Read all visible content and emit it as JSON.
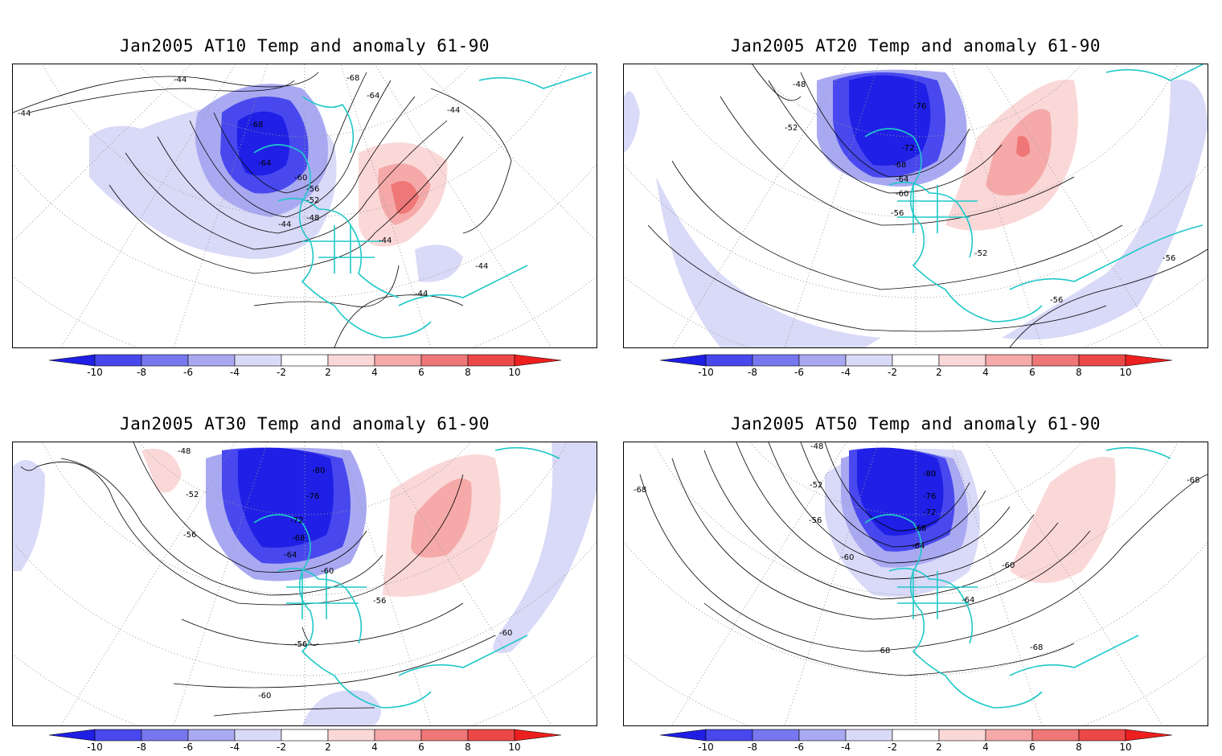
{
  "panels": [
    {
      "title": "Jan2005 AT10 Temp and anomaly 61-90",
      "contour_labels": [
        "-44",
        "-44",
        "-68",
        "-64",
        "-44",
        "-68",
        "-64",
        "-60",
        "-56",
        "-52",
        "-48",
        "-44",
        "-44",
        "-44",
        "-44"
      ]
    },
    {
      "title": "Jan2005 AT20 Temp and anomaly 61-90",
      "contour_labels": [
        "-48",
        "-52",
        "-76",
        "-72",
        "-68",
        "-64",
        "-60",
        "-56",
        "-52",
        "-56",
        "-56"
      ]
    },
    {
      "title": "Jan2005 AT30 Temp and anomaly 61-90",
      "contour_labels": [
        "-48",
        "-52",
        "-56",
        "-80",
        "-76",
        "-72",
        "-68",
        "-64",
        "-60",
        "-56",
        "-56",
        "-60",
        "-60"
      ]
    },
    {
      "title": "Jan2005 AT50 Temp and anomaly 61-90",
      "contour_labels": [
        "-48",
        "-68",
        "-52",
        "-56",
        "-80",
        "-76",
        "-72",
        "-68",
        "-64",
        "-60",
        "-60",
        "-64",
        "-68",
        "-68",
        "-68"
      ]
    }
  ],
  "colorbar": {
    "ticks": [
      "-10",
      "-8",
      "-6",
      "-4",
      "-2",
      "2",
      "4",
      "6",
      "8",
      "10"
    ],
    "colors": {
      "neg10": "#1f1fe6",
      "neg8": "#4848ee",
      "neg6": "#7777f0",
      "neg4": "#a9a9f2",
      "neg2": "#d9d9f8",
      "zero": "#ffffff",
      "pos2": "#fbd8d8",
      "pos4": "#f5a9a9",
      "pos6": "#f07777",
      "pos8": "#ec4848",
      "pos10": "#ee1f1f"
    }
  },
  "coastline_color": "#20c8c8"
}
